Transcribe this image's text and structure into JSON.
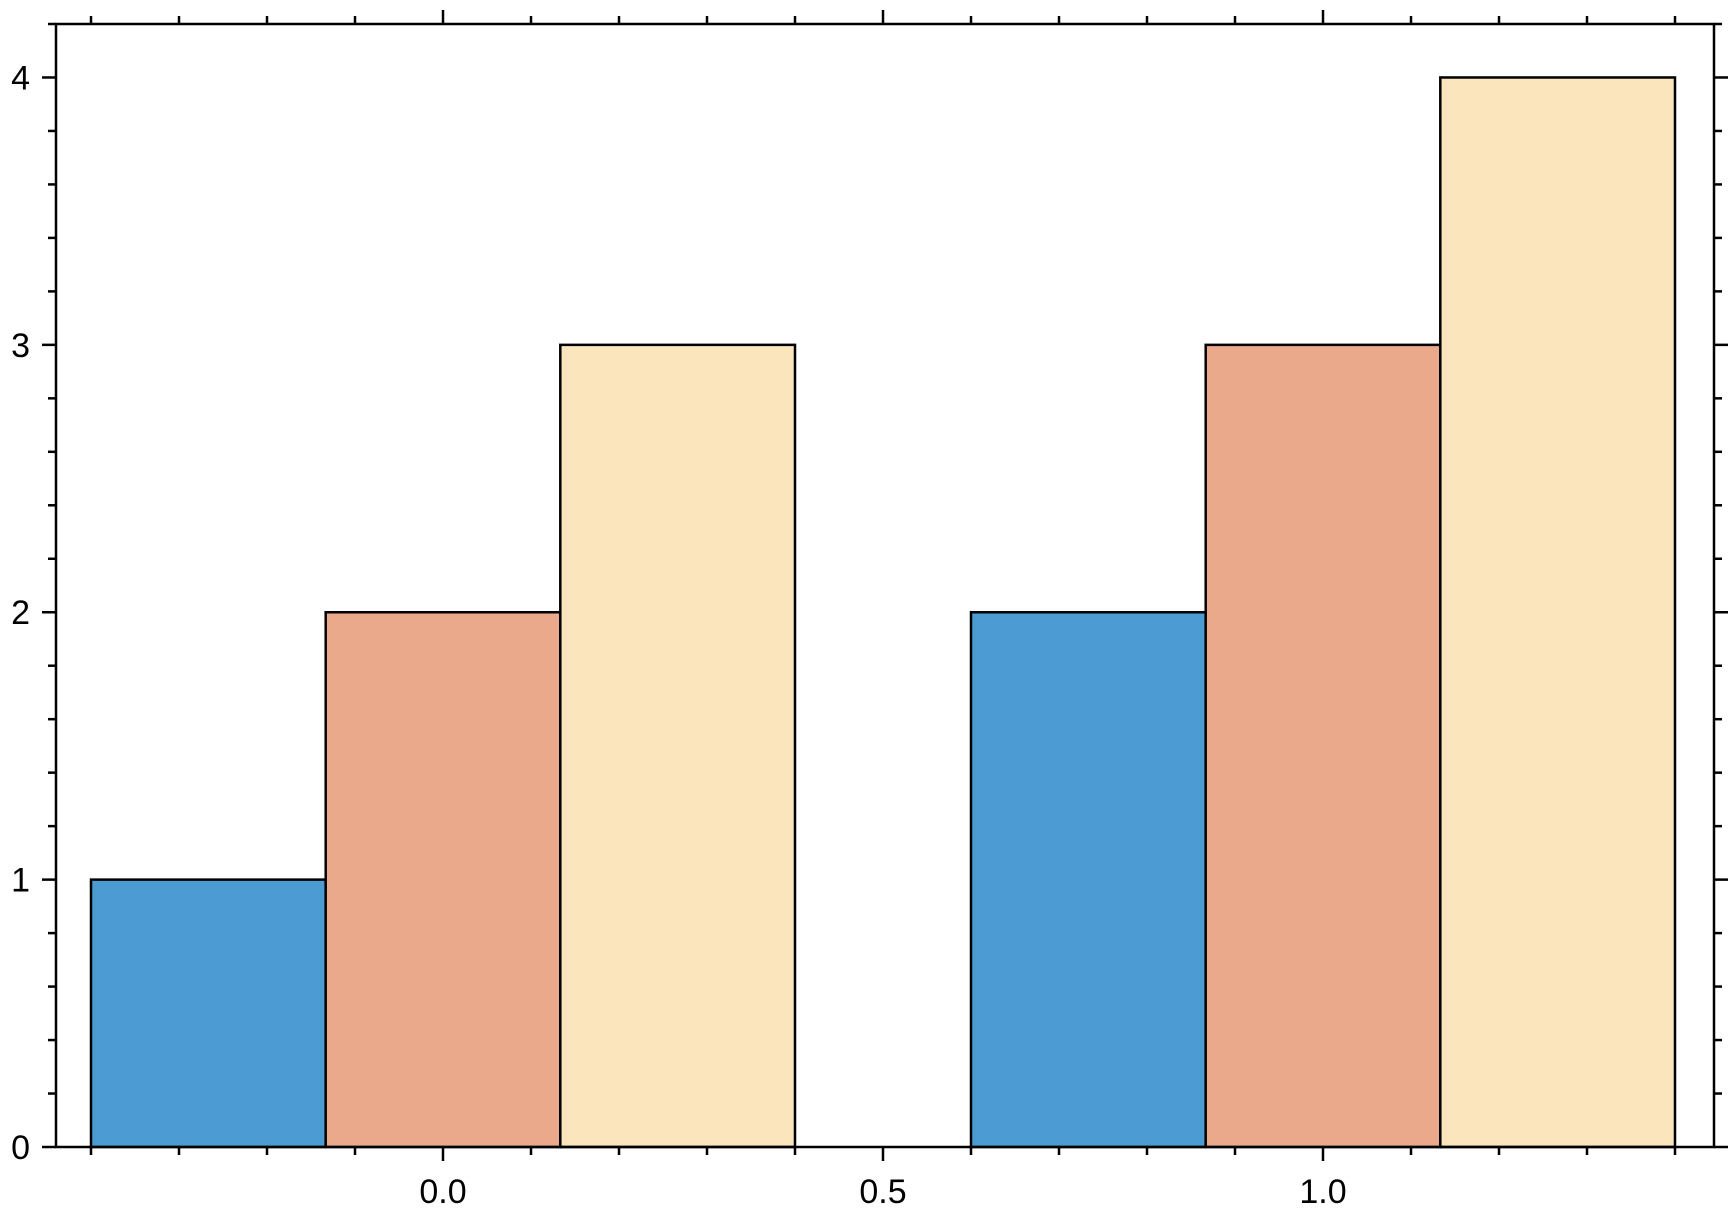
{
  "chart_data": {
    "type": "bar",
    "title": "",
    "xlabel": "",
    "ylabel": "",
    "xlim": [
      -0.4,
      1.4
    ],
    "ylim": [
      0,
      4.2
    ],
    "grid": false,
    "frame": "boxed with ticks on all four sides, tick labels on bottom and left",
    "x_ticks": {
      "major": [
        0.0,
        0.5,
        1.0
      ],
      "labels": [
        "0.0",
        "0.5",
        "1.0"
      ],
      "minor": [
        -0.4,
        -0.3,
        -0.2,
        -0.1,
        0.0,
        0.1,
        0.2,
        0.3,
        0.4,
        0.5,
        0.6,
        0.7,
        0.8,
        0.9,
        1.0,
        1.1,
        1.2,
        1.3,
        1.4
      ]
    },
    "y_ticks": {
      "major": [
        0,
        1,
        2,
        3,
        4
      ],
      "labels": [
        "0",
        "1",
        "2",
        "3",
        "4"
      ],
      "minor": [
        0.2,
        0.4,
        0.6,
        0.8,
        1.2,
        1.4,
        1.6,
        1.8,
        2.2,
        2.4,
        2.6,
        2.8,
        3.2,
        3.4,
        3.6,
        3.8,
        4.2
      ]
    },
    "categories": [
      0,
      1
    ],
    "bar_edges": [
      [
        -0.4,
        -0.1333,
        0.1333,
        0.4
      ],
      [
        0.6,
        0.8667,
        1.1333,
        1.4
      ]
    ],
    "series": [
      {
        "values": [
          1,
          2
        ],
        "color": "#4c9cd3"
      },
      {
        "values": [
          2,
          3
        ],
        "color": "#eba98b"
      },
      {
        "values": [
          3,
          4
        ],
        "color": "#fae5bc"
      }
    ],
    "edge_color": "#000000"
  }
}
